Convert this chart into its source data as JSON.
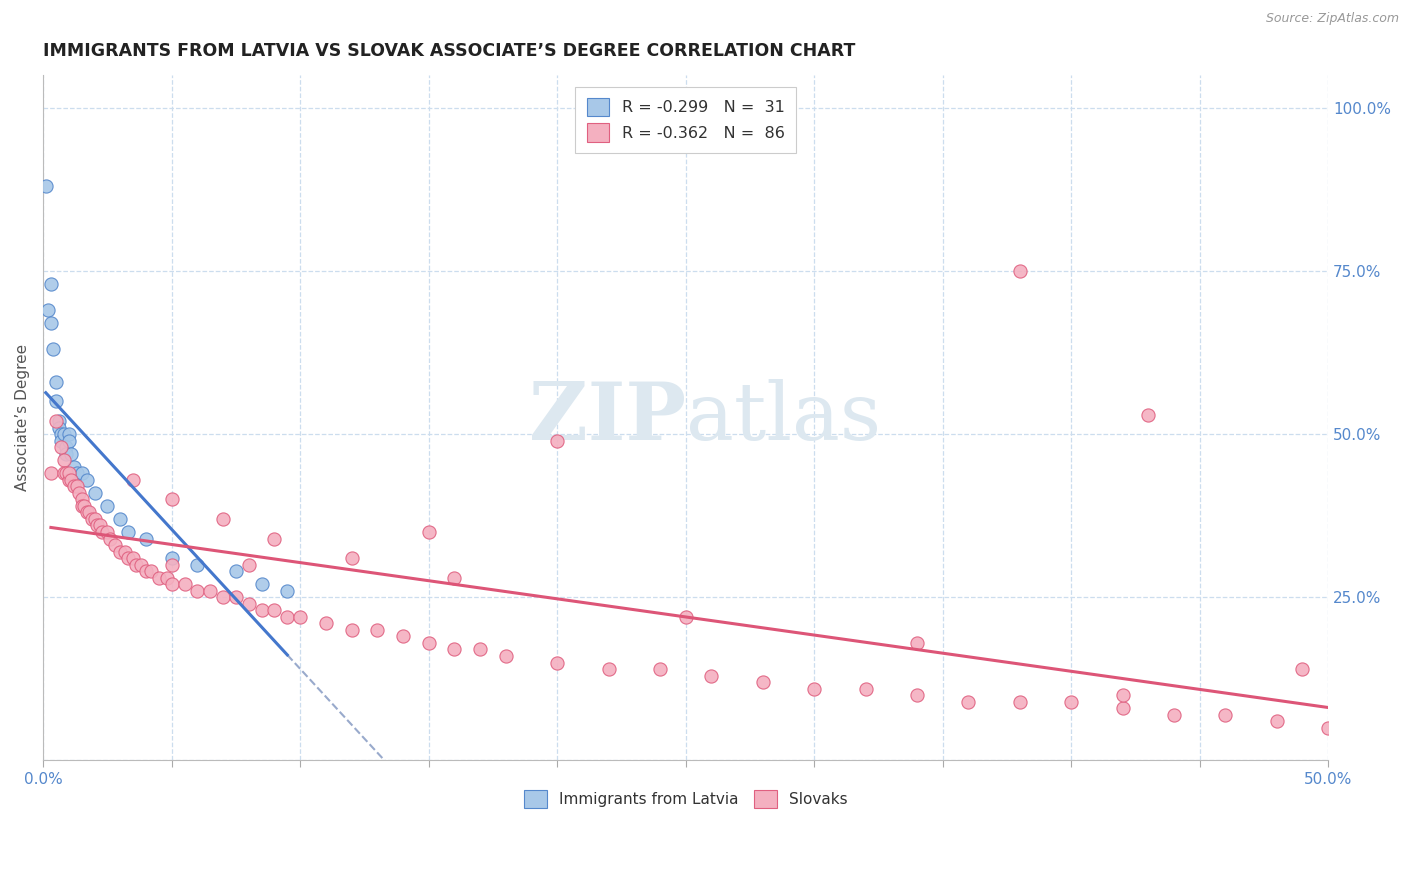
{
  "title": "IMMIGRANTS FROM LATVIA VS SLOVAK ASSOCIATE’S DEGREE CORRELATION CHART",
  "source": "Source: ZipAtlas.com",
  "ylabel": "Associate’s Degree",
  "xlim": [
    0.0,
    0.5
  ],
  "ylim": [
    0.0,
    1.05
  ],
  "legend_label1": "Immigrants from Latvia",
  "legend_label2": "Slovaks",
  "color_latvia_fill": "#a8c8e8",
  "color_latvia_edge": "#5588cc",
  "color_slovak_fill": "#f4b0c0",
  "color_slovak_edge": "#e06080",
  "color_line_latvia": "#4477cc",
  "color_line_slovak": "#dd5577",
  "color_dashed": "#99aacc",
  "watermark_color": "#dde8f0",
  "latvia_x": [
    0.001,
    0.002,
    0.003,
    0.003,
    0.004,
    0.005,
    0.005,
    0.006,
    0.006,
    0.007,
    0.007,
    0.008,
    0.009,
    0.009,
    0.01,
    0.01,
    0.011,
    0.012,
    0.013,
    0.015,
    0.017,
    0.02,
    0.025,
    0.03,
    0.033,
    0.04,
    0.05,
    0.06,
    0.075,
    0.085,
    0.095
  ],
  "latvia_y": [
    0.88,
    0.69,
    0.73,
    0.67,
    0.63,
    0.58,
    0.55,
    0.52,
    0.51,
    0.5,
    0.49,
    0.5,
    0.48,
    0.47,
    0.5,
    0.49,
    0.47,
    0.45,
    0.44,
    0.44,
    0.43,
    0.41,
    0.39,
    0.37,
    0.35,
    0.34,
    0.31,
    0.3,
    0.29,
    0.27,
    0.26
  ],
  "slovak_x": [
    0.003,
    0.005,
    0.007,
    0.008,
    0.008,
    0.009,
    0.01,
    0.01,
    0.011,
    0.012,
    0.013,
    0.014,
    0.015,
    0.015,
    0.016,
    0.017,
    0.018,
    0.019,
    0.02,
    0.021,
    0.022,
    0.023,
    0.025,
    0.026,
    0.028,
    0.03,
    0.032,
    0.033,
    0.035,
    0.036,
    0.038,
    0.04,
    0.042,
    0.045,
    0.048,
    0.05,
    0.055,
    0.06,
    0.065,
    0.07,
    0.075,
    0.08,
    0.085,
    0.09,
    0.095,
    0.1,
    0.11,
    0.12,
    0.13,
    0.14,
    0.15,
    0.16,
    0.17,
    0.18,
    0.2,
    0.22,
    0.24,
    0.26,
    0.28,
    0.3,
    0.32,
    0.34,
    0.36,
    0.38,
    0.4,
    0.42,
    0.44,
    0.46,
    0.48,
    0.5,
    0.035,
    0.05,
    0.07,
    0.09,
    0.12,
    0.16,
    0.25,
    0.34,
    0.42,
    0.49,
    0.38,
    0.43,
    0.2,
    0.15,
    0.08,
    0.05
  ],
  "slovak_y": [
    0.44,
    0.52,
    0.48,
    0.46,
    0.44,
    0.44,
    0.43,
    0.44,
    0.43,
    0.42,
    0.42,
    0.41,
    0.4,
    0.39,
    0.39,
    0.38,
    0.38,
    0.37,
    0.37,
    0.36,
    0.36,
    0.35,
    0.35,
    0.34,
    0.33,
    0.32,
    0.32,
    0.31,
    0.31,
    0.3,
    0.3,
    0.29,
    0.29,
    0.28,
    0.28,
    0.27,
    0.27,
    0.26,
    0.26,
    0.25,
    0.25,
    0.24,
    0.23,
    0.23,
    0.22,
    0.22,
    0.21,
    0.2,
    0.2,
    0.19,
    0.18,
    0.17,
    0.17,
    0.16,
    0.15,
    0.14,
    0.14,
    0.13,
    0.12,
    0.11,
    0.11,
    0.1,
    0.09,
    0.09,
    0.09,
    0.08,
    0.07,
    0.07,
    0.06,
    0.05,
    0.43,
    0.4,
    0.37,
    0.34,
    0.31,
    0.28,
    0.22,
    0.18,
    0.1,
    0.14,
    0.75,
    0.53,
    0.49,
    0.35,
    0.3,
    0.3
  ]
}
